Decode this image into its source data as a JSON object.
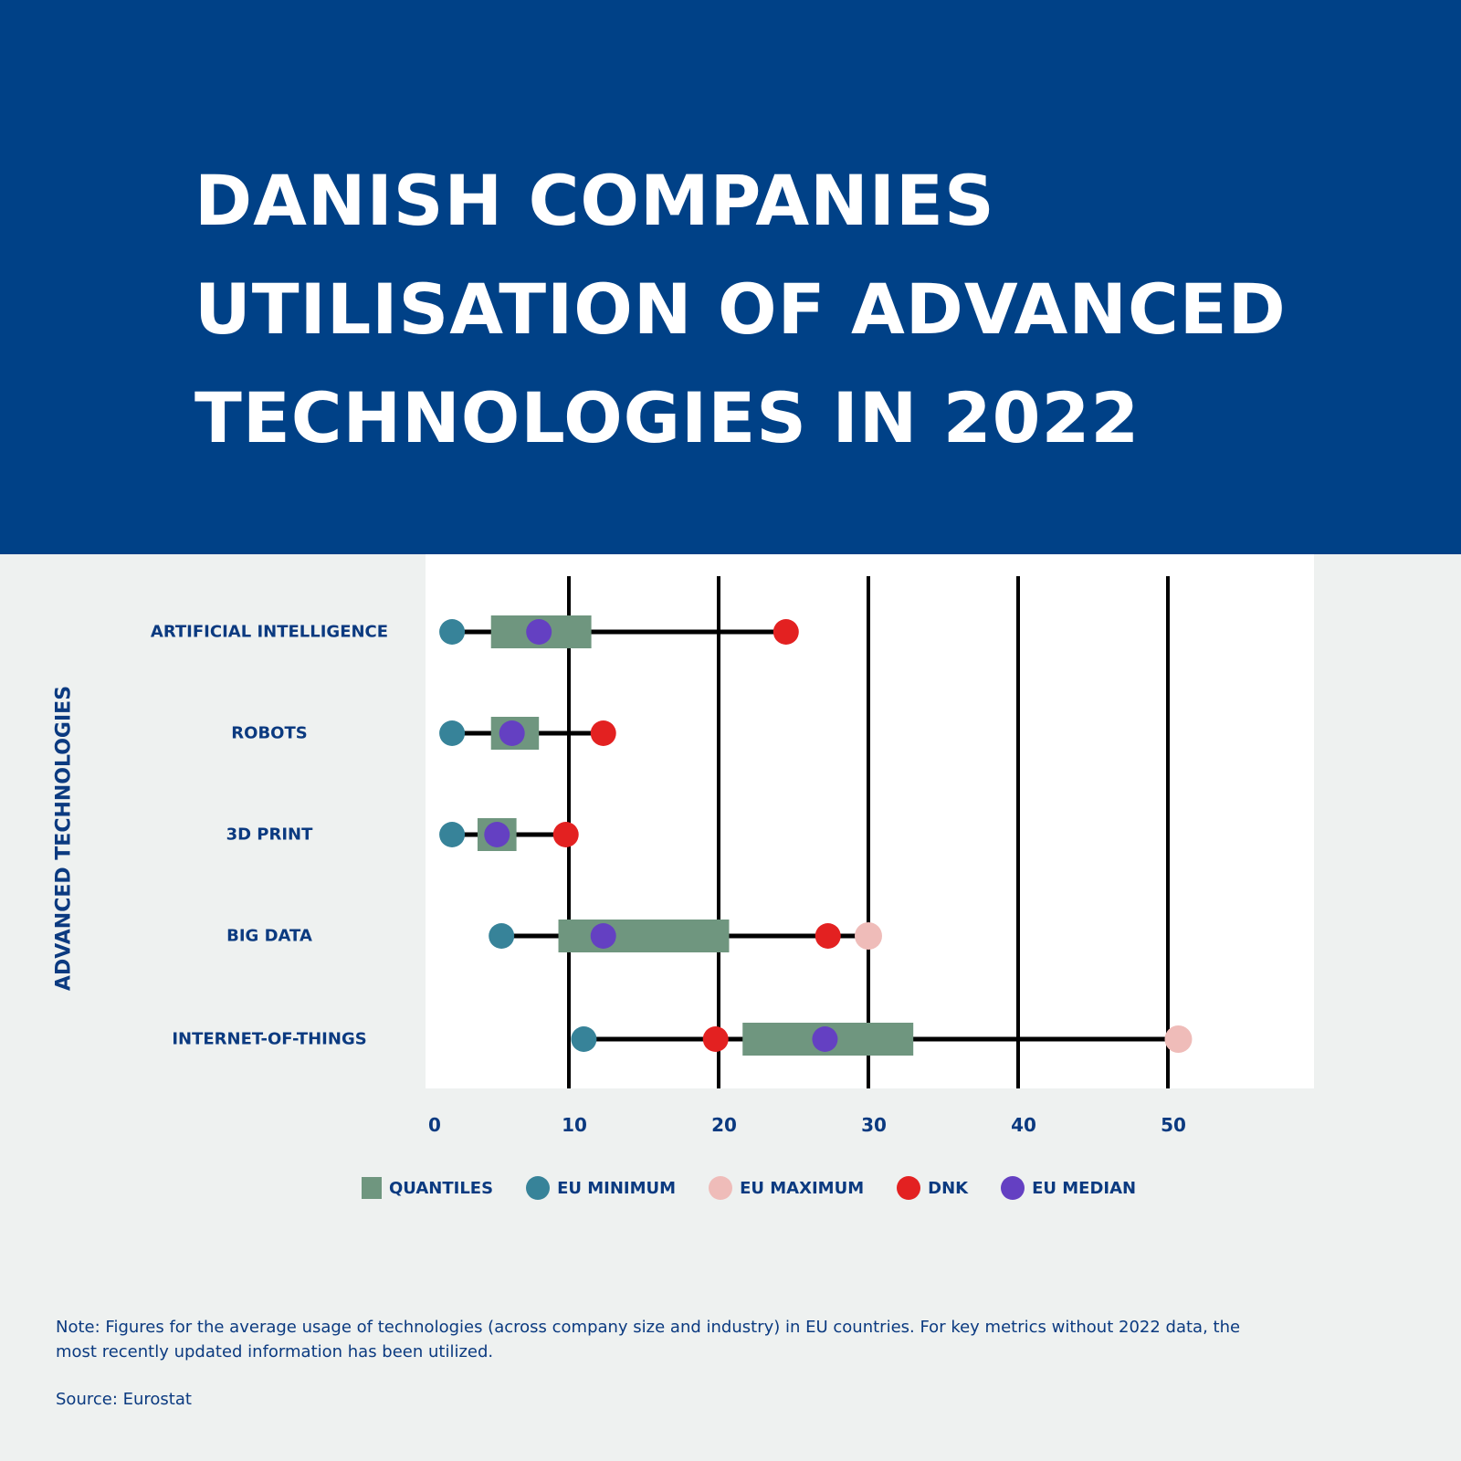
{
  "title": "DANISH COMPANIES UTILISATION OF ADVANCED TECHNOLOGIES IN 2022",
  "note": "Note: Figures for the average usage of technologies (across company size and industry) in EU countries. For key metrics without 2022 data, the most recently updated information has been utilized.",
  "source": "Source: Eurostat",
  "chart_data": {
    "type": "range-dot",
    "ylabel": "ADVANCED TECHNOLOGIES",
    "xlabel": "",
    "xlim": [
      0,
      58
    ],
    "xticks": [
      0,
      10,
      20,
      30,
      40,
      50
    ],
    "xtick_labels": [
      "0",
      "10",
      "20",
      "30",
      "40",
      "50"
    ],
    "grid": "vertical",
    "legend_position": "bottom",
    "legend": [
      {
        "key": "quantiles",
        "label": "QUANTILES",
        "shape": "square",
        "color": "#6f967f"
      },
      {
        "key": "eu_min",
        "label": "EU MINIMUM",
        "shape": "circle",
        "color": "#378399"
      },
      {
        "key": "eu_max",
        "label": "EU MAXIMUM",
        "shape": "circle",
        "color": "#efbcb9"
      },
      {
        "key": "dnk",
        "label": "DNK",
        "shape": "circle",
        "color": "#e32121"
      },
      {
        "key": "eu_median",
        "label": "EU MEDIAN",
        "shape": "circle",
        "color": "#6440c2"
      }
    ],
    "categories": [
      "ARTIFICIAL INTELLIGENCE",
      "ROBOTS",
      "3D PRINT",
      "BIG DATA",
      "INTERNET-OF-THINGS"
    ],
    "rows": [
      {
        "eu_min": 2.2,
        "q_low": 4.8,
        "q_high": 11.5,
        "eu_median": 8.0,
        "dnk": 24.5,
        "eu_max": null
      },
      {
        "eu_min": 2.2,
        "q_low": 4.8,
        "q_high": 8.0,
        "eu_median": 6.2,
        "dnk": 12.3,
        "eu_max": null
      },
      {
        "eu_min": 2.2,
        "q_low": 3.9,
        "q_high": 6.5,
        "eu_median": 5.2,
        "dnk": 9.8,
        "eu_max": null
      },
      {
        "eu_min": 5.5,
        "q_low": 9.3,
        "q_high": 20.7,
        "eu_median": 12.3,
        "dnk": 27.3,
        "eu_max": 30.0
      },
      {
        "eu_min": 11.0,
        "q_low": 21.6,
        "q_high": 33.0,
        "eu_median": 27.1,
        "dnk": 19.8,
        "eu_max": 50.7
      }
    ]
  }
}
